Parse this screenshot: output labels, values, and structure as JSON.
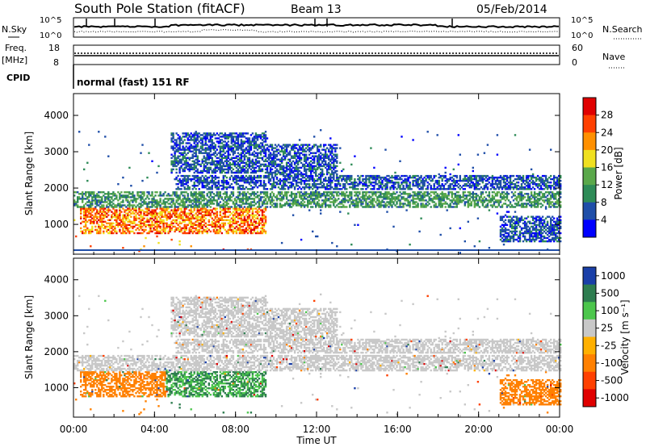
{
  "header": {
    "station": "South Pole Station (fitACF)",
    "beam": "Beam 13",
    "date": "05/Feb/2014"
  },
  "top_panels": {
    "nsky_label": "N.Sky",
    "nsearch_label": "N.Search",
    "noise_ticks": [
      "10^5",
      "10^0"
    ],
    "freq_label": "Freq.",
    "freq_unit": "[MHz]",
    "freq_ticks": [
      "18",
      "8"
    ],
    "nave_label": "Nave",
    "nave_ticks": [
      "60",
      "0"
    ],
    "cpid_label": "CPID",
    "cpid_value": "normal (fast) 151 RF"
  },
  "chart_data": [
    {
      "type": "heatmap",
      "name": "power",
      "ylabel": "Slant Range [km]",
      "yticks": [
        1000,
        2000,
        3000,
        4000
      ],
      "ylim": [
        180,
        4600
      ],
      "xlim": [
        0,
        24
      ],
      "colorbar_label": "Power [dB]",
      "colorbar_ticks": [
        4,
        8,
        12,
        16,
        20,
        24,
        28
      ],
      "colorbar_range": [
        0,
        32
      ],
      "colors": [
        "#0000ff",
        "#1f4ea8",
        "#2e8b57",
        "#5aa84a",
        "#f0e020",
        "#ff9000",
        "#ff4000",
        "#e00000"
      ]
    },
    {
      "type": "heatmap",
      "name": "velocity",
      "ylabel": "Slant Range [km]",
      "yticks": [
        1000,
        2000,
        3000,
        4000
      ],
      "ylim": [
        180,
        4600
      ],
      "xlim": [
        0,
        24
      ],
      "xlabel": "Time UT",
      "xticks": [
        "00:00",
        "04:00",
        "08:00",
        "12:00",
        "16:00",
        "20:00",
        "00:00"
      ],
      "colorbar_label": "Velocity [m s⁻¹]",
      "colorbar_ticks": [
        "1000",
        "500",
        "100",
        "25",
        "-25",
        "-100",
        "-500",
        "-1000"
      ],
      "colors": [
        "#1a3fa8",
        "#2e7d50",
        "#4cc64c",
        "#c8c8c8",
        "#ffb000",
        "#ff8000",
        "#ff4000",
        "#e00000"
      ]
    }
  ]
}
